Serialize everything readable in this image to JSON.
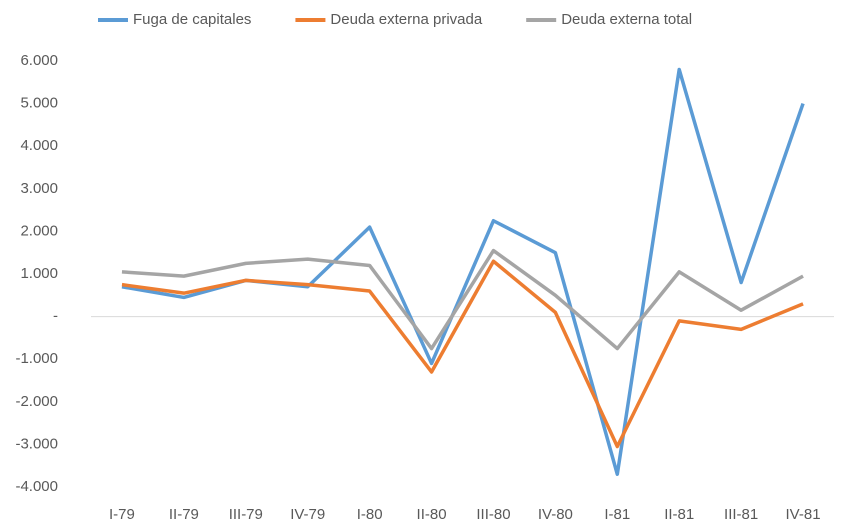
{
  "chart_data": {
    "type": "line",
    "categories": [
      "I-79",
      "II-79",
      "III-79",
      "IV-79",
      "I-80",
      "II-80",
      "III-80",
      "IV-80",
      "I-81",
      "II-81",
      "III-81",
      "IV-81"
    ],
    "series": [
      {
        "name": "Fuga de capitales",
        "color": "#5b9bd5",
        "values": [
          700,
          450,
          850,
          700,
          2100,
          -1100,
          2250,
          1500,
          -3700,
          5800,
          800,
          5000
        ]
      },
      {
        "name": "Deuda externa privada",
        "color": "#ed7d31",
        "values": [
          750,
          550,
          850,
          750,
          600,
          -1300,
          1300,
          100,
          -3050,
          -100,
          -300,
          300
        ]
      },
      {
        "name": "Deuda externa total",
        "color": "#a5a5a5",
        "values": [
          1050,
          950,
          1250,
          1350,
          1200,
          -750,
          1550,
          500,
          -750,
          1050,
          150,
          950
        ]
      }
    ],
    "ylim": [
      -4000,
      6000
    ],
    "yticks": [
      {
        "value": 6000,
        "label": "6.000"
      },
      {
        "value": 5000,
        "label": "5.000"
      },
      {
        "value": 4000,
        "label": "4.000"
      },
      {
        "value": 3000,
        "label": "3.000"
      },
      {
        "value": 2000,
        "label": "2.000"
      },
      {
        "value": 1000,
        "label": "1.000"
      },
      {
        "value": 0,
        "label": "-"
      },
      {
        "value": -1000,
        "label": "-1.000"
      },
      {
        "value": -2000,
        "label": "-2.000"
      },
      {
        "value": -3000,
        "label": "-3.000"
      },
      {
        "value": -4000,
        "label": "-4.000"
      }
    ],
    "grid": false,
    "legend": "top"
  }
}
